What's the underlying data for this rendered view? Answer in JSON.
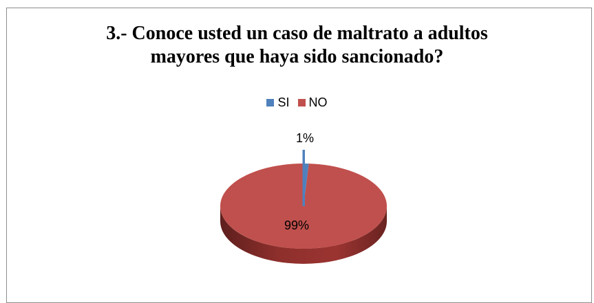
{
  "chart_data": {
    "type": "pie",
    "title_lines": [
      "3.- Conoce usted un caso de maltrato a adultos",
      "mayores que haya sido sancionado?"
    ],
    "categories": [
      "SI",
      "NO"
    ],
    "values": [
      1,
      99
    ],
    "value_labels": [
      "1%",
      "99%"
    ],
    "colors": [
      "#4f81bd",
      "#c0504d"
    ],
    "legend_position": "top",
    "style": "3d"
  }
}
